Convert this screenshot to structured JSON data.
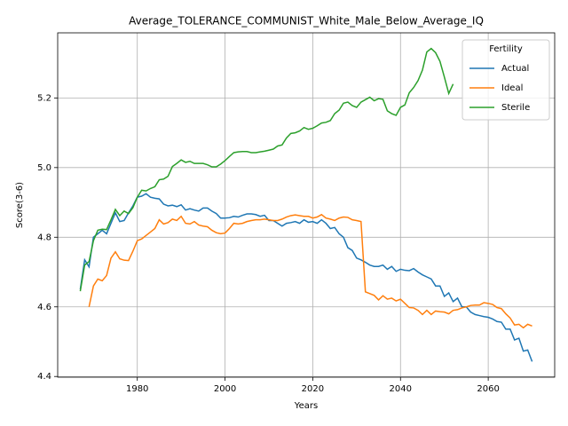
{
  "chart_data": {
    "type": "line",
    "title": "Average_TOLERANCE_COMMUNIST_White_Male_Below_Average_IQ",
    "xlabel": "Years",
    "ylabel": "Score(3-6)",
    "legend_title": "Fertility",
    "legend": "upper right",
    "grid": true,
    "xlim": [
      1961.85,
      2075.15
    ],
    "ylim": [
      4.398,
      5.387
    ],
    "xticks": [
      1980,
      2000,
      2020,
      2040,
      2060
    ],
    "yticks": [
      4.4,
      4.6,
      4.8,
      {
        "value": 5,
        "label": "5.0"
      },
      5.2
    ],
    "x": [
      1967,
      1968,
      1969,
      1970,
      1971,
      1972,
      1973,
      1974,
      1975,
      1976,
      1977,
      1978,
      1979,
      1980,
      1981,
      1982,
      1983,
      1984,
      1985,
      1986,
      1987,
      1988,
      1989,
      1990,
      1991,
      1992,
      1993,
      1994,
      1995,
      1996,
      1997,
      1998,
      1999,
      2000,
      2001,
      2002,
      2003,
      2004,
      2005,
      2006,
      2007,
      2008,
      2009,
      2010,
      2011,
      2012,
      2013,
      2014,
      2015,
      2016,
      2017,
      2018,
      2019,
      2020,
      2021,
      2022,
      2023,
      2024,
      2025,
      2026,
      2027,
      2028,
      2029,
      2030,
      2031,
      2032,
      2033,
      2034,
      2035,
      2036,
      2037,
      2038,
      2039,
      2040,
      2041,
      2042,
      2043,
      2044,
      2045,
      2046,
      2047,
      2048,
      2049,
      2050,
      2051,
      2052,
      2053,
      2054,
      2055,
      2056,
      2057,
      2058,
      2059,
      2060,
      2061,
      2062,
      2063,
      2064,
      2065,
      2066,
      2067,
      2068,
      2069,
      2070
    ],
    "series": [
      {
        "name": "Actual",
        "color": "#1f77b4",
        "values": [
          4.65,
          4.735,
          4.715,
          4.8,
          4.81,
          4.82,
          4.81,
          4.84,
          4.87,
          4.845,
          4.848,
          4.87,
          4.89,
          4.915,
          4.918,
          4.925,
          4.915,
          4.912,
          4.91,
          4.895,
          4.89,
          4.892,
          4.888,
          4.893,
          4.878,
          4.882,
          4.878,
          4.875,
          4.884,
          4.884,
          4.875,
          4.868,
          4.855,
          4.855,
          4.856,
          4.86,
          4.858,
          4.863,
          4.867,
          4.867,
          4.865,
          4.86,
          4.863,
          4.848,
          4.848,
          4.84,
          4.832,
          4.84,
          4.842,
          4.845,
          4.84,
          4.85,
          4.843,
          4.845,
          4.84,
          4.85,
          4.84,
          4.825,
          4.828,
          4.81,
          4.8,
          4.77,
          4.762,
          4.74,
          4.735,
          4.728,
          4.72,
          4.716,
          4.716,
          4.72,
          4.708,
          4.716,
          4.702,
          4.708,
          4.705,
          4.704,
          4.71,
          4.7,
          4.692,
          4.686,
          4.68,
          4.66,
          4.66,
          4.63,
          4.64,
          4.615,
          4.625,
          4.6,
          4.6,
          4.585,
          4.578,
          4.575,
          4.572,
          4.57,
          4.565,
          4.558,
          4.556,
          4.536,
          4.536,
          4.505,
          4.51,
          4.473,
          4.476,
          4.443
        ]
      },
      {
        "name": "Ideal",
        "color": "#ff7f0e",
        "values": [
          null,
          null,
          4.6,
          4.66,
          4.68,
          4.675,
          4.69,
          4.74,
          4.758,
          4.738,
          4.734,
          4.733,
          4.76,
          4.79,
          4.795,
          4.805,
          4.815,
          4.825,
          4.85,
          4.838,
          4.842,
          4.852,
          4.848,
          4.86,
          4.84,
          4.838,
          4.845,
          4.835,
          4.832,
          4.83,
          4.82,
          4.813,
          4.81,
          4.812,
          4.825,
          4.84,
          4.838,
          4.84,
          4.845,
          4.848,
          4.85,
          4.85,
          4.852,
          4.85,
          4.848,
          4.848,
          4.852,
          4.858,
          4.862,
          4.864,
          4.862,
          4.86,
          4.86,
          4.855,
          4.858,
          4.865,
          4.855,
          4.852,
          4.848,
          4.855,
          4.858,
          4.857,
          4.85,
          4.848,
          4.845,
          4.643,
          4.638,
          4.633,
          4.62,
          4.632,
          4.622,
          4.625,
          4.617,
          4.622,
          4.61,
          4.598,
          4.597,
          4.59,
          4.578,
          4.59,
          4.578,
          4.588,
          4.586,
          4.585,
          4.58,
          4.59,
          4.592,
          4.597,
          4.6,
          4.604,
          4.605,
          4.605,
          4.612,
          4.61,
          4.607,
          4.598,
          4.595,
          4.58,
          4.568,
          4.548,
          4.55,
          4.54,
          4.55,
          4.545
        ]
      },
      {
        "name": "Sterile",
        "color": "#2ca02c",
        "values": [
          4.645,
          4.72,
          4.73,
          4.79,
          4.82,
          4.823,
          4.822,
          4.85,
          4.88,
          4.862,
          4.875,
          4.868,
          4.885,
          4.915,
          4.935,
          4.933,
          4.94,
          4.945,
          4.965,
          4.967,
          4.975,
          5.003,
          5.012,
          5.022,
          5.015,
          5.018,
          5.012,
          5.012,
          5.012,
          5.008,
          5.002,
          5.002,
          5.01,
          5.02,
          5.032,
          5.043,
          5.045,
          5.046,
          5.046,
          5.043,
          5.043,
          5.045,
          5.047,
          5.05,
          5.053,
          5.062,
          5.065,
          5.085,
          5.098,
          5.1,
          5.105,
          5.115,
          5.11,
          5.113,
          5.12,
          5.128,
          5.13,
          5.135,
          5.155,
          5.165,
          5.185,
          5.188,
          5.178,
          5.173,
          5.188,
          5.195,
          5.202,
          5.192,
          5.198,
          5.196,
          5.163,
          5.155,
          5.15,
          5.173,
          5.18,
          5.215,
          5.23,
          5.25,
          5.28,
          5.332,
          5.342,
          5.33,
          5.305,
          5.26,
          5.213,
          5.24,
          null,
          null,
          null,
          null,
          null,
          null,
          null,
          null,
          null,
          null,
          null,
          null,
          null,
          null,
          null,
          null,
          null,
          null
        ]
      }
    ]
  }
}
